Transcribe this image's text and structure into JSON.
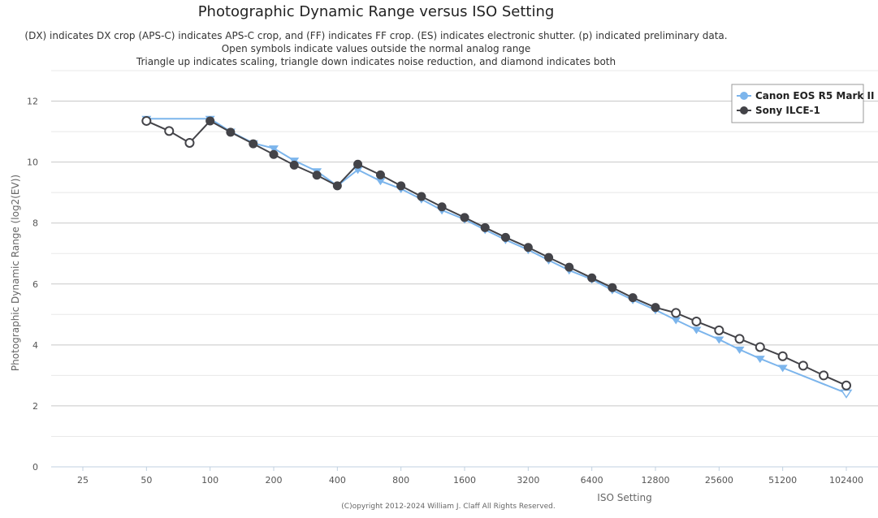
{
  "chart_data": {
    "type": "line",
    "title": "Photographic Dynamic Range versus ISO Setting",
    "subtitle_lines": [
      "(DX) indicates DX crop (APS-C) indicates APS-C crop, and (FF) indicates FF crop. (ES) indicates electronic shutter. (p) indicated preliminary data.",
      "Open symbols indicate values outside the normal analog range",
      "Triangle up indicates scaling, triangle down indicates noise reduction, and diamond indicates both"
    ],
    "xlabel": "ISO Setting",
    "ylabel": "Photographic Dynamic Range (log2(EV))",
    "x_scale": "log2",
    "x_ticks": [
      25,
      50,
      100,
      200,
      400,
      800,
      1600,
      3200,
      6400,
      12800,
      25600,
      51200,
      102400
    ],
    "x_tick_labels": [
      "25",
      "50",
      "100",
      "200",
      "400",
      "800",
      "1600",
      "3200",
      "6400",
      "12800",
      "25600",
      "51200",
      "102400"
    ],
    "xlim": [
      25,
      102400
    ],
    "ylim": [
      0,
      13
    ],
    "y_ticks": [
      0,
      2,
      4,
      6,
      8,
      10,
      12
    ],
    "y_tick_labels": [
      "0",
      "2",
      "4",
      "6",
      "8",
      "10",
      "12"
    ],
    "grid": true,
    "legend_position": "top-right",
    "copyright": "(C)opyright 2012-2024 William J. Claff All Rights Reserved.",
    "series": [
      {
        "name": "Canon EOS R5 Mark II",
        "color": "#7cb5ec",
        "points": [
          {
            "x": 50,
            "y": 11.42,
            "marker": "triangle-down",
            "open": false
          },
          {
            "x": 100,
            "y": 11.42,
            "marker": "triangle-down",
            "open": false
          },
          {
            "x": 125,
            "y": 11.0,
            "marker": "triangle-down",
            "open": false
          },
          {
            "x": 160,
            "y": 10.62,
            "marker": "triangle-down",
            "open": false
          },
          {
            "x": 200,
            "y": 10.45,
            "marker": "triangle-down",
            "open": false
          },
          {
            "x": 250,
            "y": 10.05,
            "marker": "triangle-down",
            "open": false
          },
          {
            "x": 320,
            "y": 9.7,
            "marker": "triangle-down",
            "open": false
          },
          {
            "x": 400,
            "y": 9.22,
            "marker": "triangle-down",
            "open": false
          },
          {
            "x": 500,
            "y": 9.75,
            "marker": "triangle-down",
            "open": false
          },
          {
            "x": 640,
            "y": 9.38,
            "marker": "triangle-down",
            "open": false
          },
          {
            "x": 800,
            "y": 9.12,
            "marker": "triangle-down",
            "open": false
          },
          {
            "x": 1000,
            "y": 8.78,
            "marker": "triangle-down",
            "open": false
          },
          {
            "x": 1250,
            "y": 8.42,
            "marker": "triangle-down",
            "open": false
          },
          {
            "x": 1600,
            "y": 8.12,
            "marker": "triangle-down",
            "open": false
          },
          {
            "x": 2000,
            "y": 7.78,
            "marker": "triangle-down",
            "open": false
          },
          {
            "x": 2500,
            "y": 7.45,
            "marker": "triangle-down",
            "open": false
          },
          {
            "x": 3200,
            "y": 7.12,
            "marker": "triangle-down",
            "open": false
          },
          {
            "x": 4000,
            "y": 6.78,
            "marker": "triangle-down",
            "open": false
          },
          {
            "x": 5000,
            "y": 6.45,
            "marker": "triangle-down",
            "open": false
          },
          {
            "x": 6400,
            "y": 6.15,
            "marker": "triangle-down",
            "open": false
          },
          {
            "x": 8000,
            "y": 5.8,
            "marker": "triangle-down",
            "open": false
          },
          {
            "x": 10000,
            "y": 5.48,
            "marker": "triangle-down",
            "open": false
          },
          {
            "x": 12800,
            "y": 5.15,
            "marker": "triangle-down",
            "open": false
          },
          {
            "x": 16000,
            "y": 4.82,
            "marker": "triangle-down",
            "open": false
          },
          {
            "x": 20000,
            "y": 4.5,
            "marker": "triangle-down",
            "open": false
          },
          {
            "x": 25600,
            "y": 4.18,
            "marker": "triangle-down",
            "open": false
          },
          {
            "x": 32000,
            "y": 3.85,
            "marker": "triangle-down",
            "open": false
          },
          {
            "x": 40000,
            "y": 3.55,
            "marker": "triangle-down",
            "open": false
          },
          {
            "x": 51200,
            "y": 3.25,
            "marker": "triangle-down",
            "open": false
          },
          {
            "x": 102400,
            "y": 2.42,
            "marker": "triangle-down",
            "open": true
          }
        ]
      },
      {
        "name": "Sony ILCE-1",
        "color": "#434348",
        "points": [
          {
            "x": 50,
            "y": 11.35,
            "marker": "circle",
            "open": true
          },
          {
            "x": 64,
            "y": 11.02,
            "marker": "circle",
            "open": true
          },
          {
            "x": 80,
            "y": 10.63,
            "marker": "circle",
            "open": true
          },
          {
            "x": 100,
            "y": 11.35,
            "marker": "circle",
            "open": false
          },
          {
            "x": 125,
            "y": 10.98,
            "marker": "circle",
            "open": false
          },
          {
            "x": 160,
            "y": 10.6,
            "marker": "circle",
            "open": false
          },
          {
            "x": 200,
            "y": 10.25,
            "marker": "circle",
            "open": false
          },
          {
            "x": 250,
            "y": 9.9,
            "marker": "circle",
            "open": false
          },
          {
            "x": 320,
            "y": 9.57,
            "marker": "circle",
            "open": false
          },
          {
            "x": 400,
            "y": 9.22,
            "marker": "circle",
            "open": false
          },
          {
            "x": 500,
            "y": 9.93,
            "marker": "circle",
            "open": false
          },
          {
            "x": 640,
            "y": 9.58,
            "marker": "circle",
            "open": false
          },
          {
            "x": 800,
            "y": 9.22,
            "marker": "circle",
            "open": false
          },
          {
            "x": 1000,
            "y": 8.87,
            "marker": "circle",
            "open": false
          },
          {
            "x": 1250,
            "y": 8.53,
            "marker": "circle",
            "open": false
          },
          {
            "x": 1600,
            "y": 8.18,
            "marker": "circle",
            "open": false
          },
          {
            "x": 2000,
            "y": 7.85,
            "marker": "circle",
            "open": false
          },
          {
            "x": 2500,
            "y": 7.53,
            "marker": "circle",
            "open": false
          },
          {
            "x": 3200,
            "y": 7.2,
            "marker": "circle",
            "open": false
          },
          {
            "x": 4000,
            "y": 6.87,
            "marker": "circle",
            "open": false
          },
          {
            "x": 5000,
            "y": 6.55,
            "marker": "circle",
            "open": false
          },
          {
            "x": 6400,
            "y": 6.2,
            "marker": "circle",
            "open": false
          },
          {
            "x": 8000,
            "y": 5.88,
            "marker": "circle",
            "open": false
          },
          {
            "x": 10000,
            "y": 5.55,
            "marker": "circle",
            "open": false
          },
          {
            "x": 12800,
            "y": 5.23,
            "marker": "circle",
            "open": false
          },
          {
            "x": 16000,
            "y": 5.05,
            "marker": "circle",
            "open": true
          },
          {
            "x": 20000,
            "y": 4.77,
            "marker": "circle",
            "open": true
          },
          {
            "x": 25600,
            "y": 4.48,
            "marker": "circle",
            "open": true
          },
          {
            "x": 32000,
            "y": 4.2,
            "marker": "circle",
            "open": true
          },
          {
            "x": 40000,
            "y": 3.93,
            "marker": "circle",
            "open": true
          },
          {
            "x": 51200,
            "y": 3.63,
            "marker": "circle",
            "open": true
          },
          {
            "x": 64000,
            "y": 3.32,
            "marker": "circle",
            "open": true
          },
          {
            "x": 80000,
            "y": 3.0,
            "marker": "circle",
            "open": true
          },
          {
            "x": 102400,
            "y": 2.67,
            "marker": "circle",
            "open": true
          }
        ]
      }
    ]
  }
}
